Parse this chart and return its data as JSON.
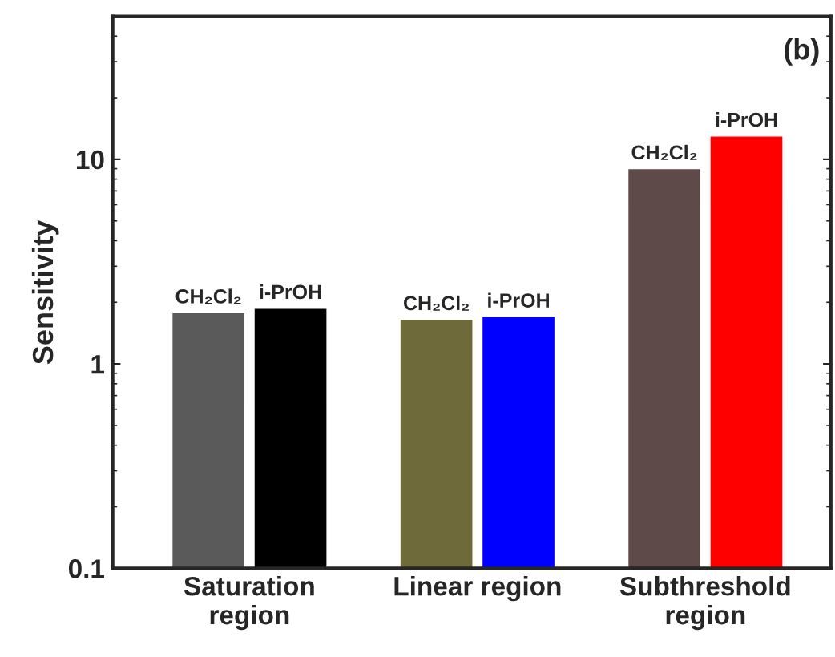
{
  "chart_data": {
    "type": "bar",
    "ylabel": "Sensitivity",
    "annotations": [
      "(b)"
    ],
    "categories": [
      "Saturation\nregion",
      "Linear region",
      "Subthreshold\nregion"
    ],
    "series": [
      {
        "name": "CH₂Cl₂",
        "colors": [
          "#5a5a5a",
          "#6e6a3a",
          "#5e4a48"
        ],
        "values": [
          1.78,
          1.65,
          9.0
        ]
      },
      {
        "name": "i-PrOH",
        "colors": [
          "#000000",
          "#0000ff",
          "#ff0000"
        ],
        "values": [
          1.87,
          1.7,
          13.0
        ]
      }
    ],
    "log": "y",
    "ylim": [
      0.1,
      50
    ],
    "yticks": [
      0.1,
      1,
      10
    ],
    "grid": false,
    "legend": false
  }
}
